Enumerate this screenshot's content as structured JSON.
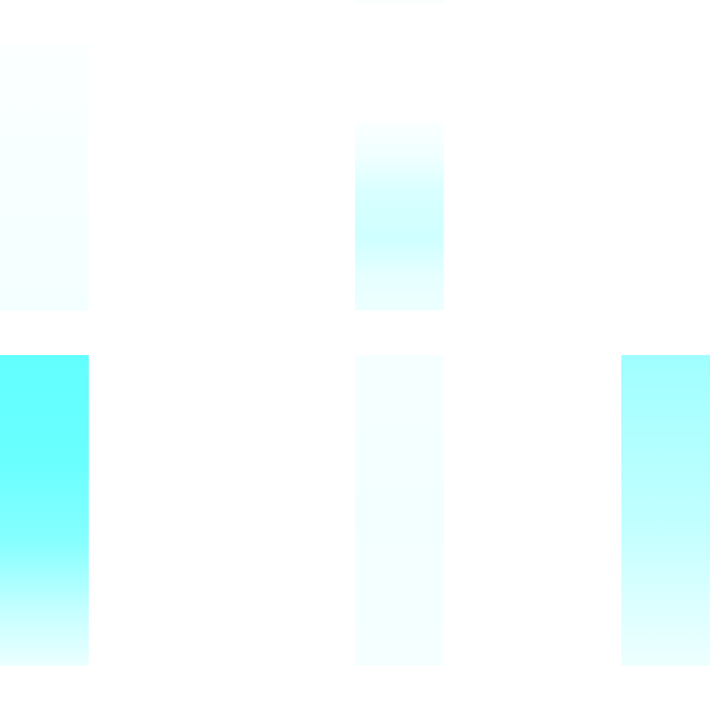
{
  "palette": {
    "background": "#ffffff",
    "accent": "#62ffff",
    "accent_light": "#a0ffff",
    "tint_faint": "#f4ffff"
  },
  "blocks": [
    {
      "name": "block-top-left",
      "color": "#f7ffff"
    },
    {
      "name": "block-top-center",
      "color": "#d8ffff"
    },
    {
      "name": "block-bottom-left",
      "color": "#62ffff"
    },
    {
      "name": "block-bottom-center",
      "color": "#f3ffff"
    },
    {
      "name": "block-bottom-right",
      "color": "#b0ffff"
    }
  ]
}
